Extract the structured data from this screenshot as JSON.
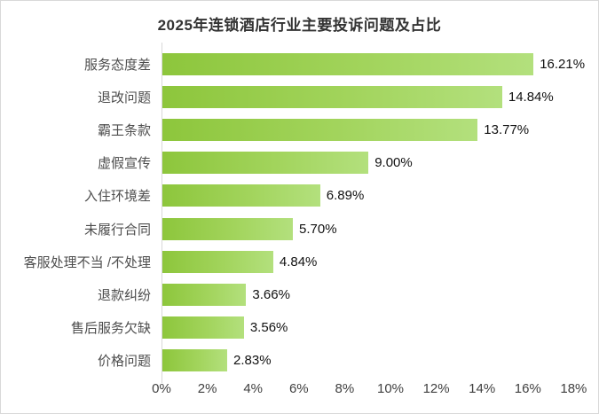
{
  "header": {
    "title": "2025年连锁酒店行业主要投诉问题及占比"
  },
  "colors": {
    "bar_gradient_start": "#8dc63c",
    "bar_gradient_end": "#b3e07d",
    "axis_line": "#d9d9d9",
    "frame_border": "#d9d9d9",
    "title_text": "#333333",
    "category_text": "#4d4d4d",
    "value_text": "#111111",
    "tick_text": "#404040",
    "background": "#ffffff"
  },
  "chart_data": {
    "type": "bar",
    "orientation": "horizontal",
    "title": "2025年连锁酒店行业主要投诉问题及占比",
    "categories": [
      "服务态度差",
      "退改问题",
      "霸王条款",
      "虚假宣传",
      "入住环境差",
      "未履行合同",
      "客服处理不当 /不处理",
      "退款纠纷",
      "售后服务欠缺",
      "价格问题"
    ],
    "values": [
      16.21,
      14.84,
      13.77,
      9.0,
      6.89,
      5.7,
      4.84,
      3.66,
      3.56,
      2.83
    ],
    "value_labels": [
      "16.21%",
      "14.84%",
      "13.77%",
      "9.00%",
      "6.89%",
      "5.70%",
      "4.84%",
      "3.66%",
      "3.56%",
      "2.83%"
    ],
    "xlabel": "",
    "ylabel": "",
    "xlim": [
      0,
      18
    ],
    "x_ticks": [
      "0%",
      "2%",
      "4%",
      "6%",
      "8%",
      "10%",
      "12%",
      "14%",
      "16%",
      "18%"
    ],
    "grid": false,
    "legend": "none",
    "sort_order": "descending",
    "value_label_position": "outside-right",
    "bar_fill": "left-to-right green gradient"
  }
}
